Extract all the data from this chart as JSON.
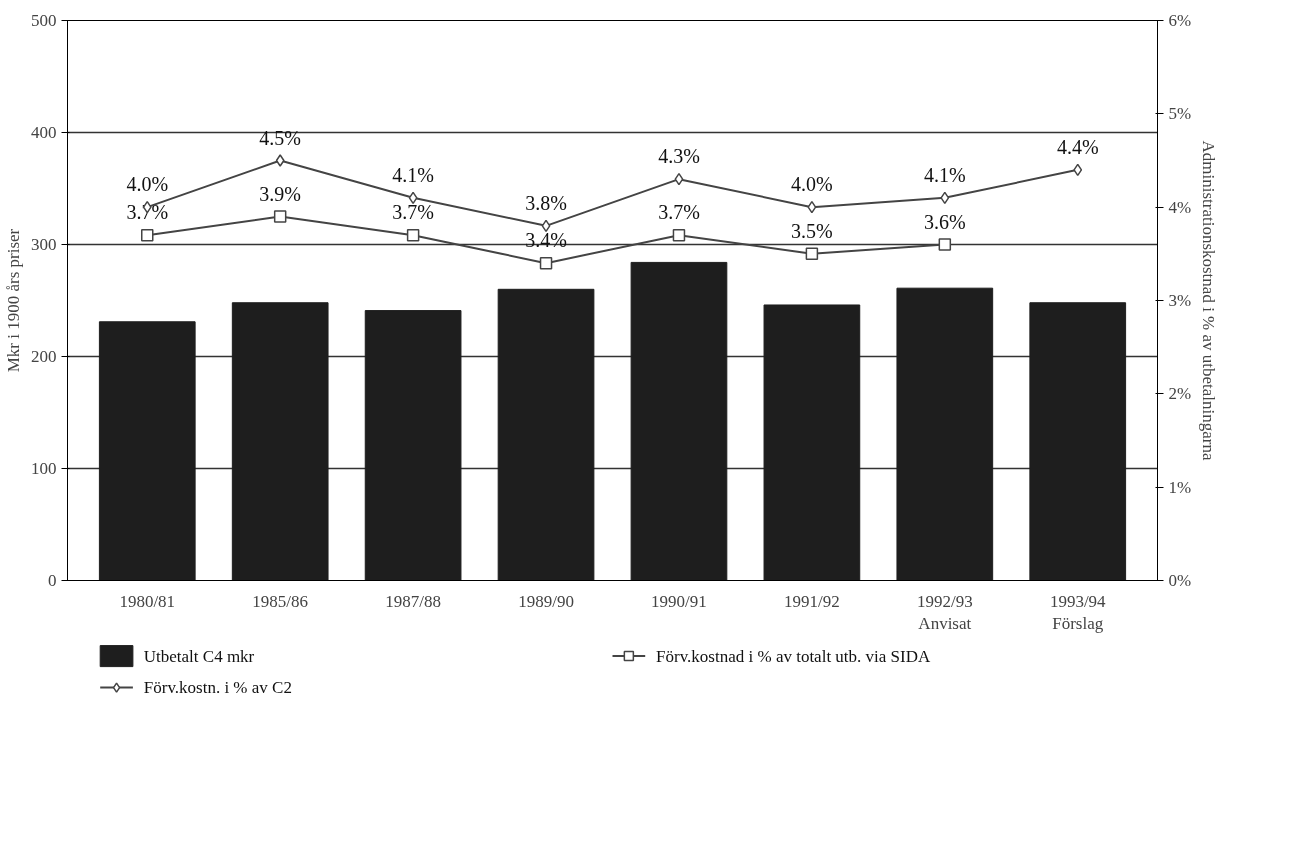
{
  "chart_data": {
    "type": "bar",
    "categories": [
      "1980/81",
      "1985/86",
      "1987/88",
      "1989/90",
      "1990/91",
      "1991/92",
      "1992/93\nAnvisat",
      "1993/94\nFörslag"
    ],
    "ylabel": "Mkr i 1900 års priser",
    "y2label": "Administrationskostnad i % av utbetalningarna",
    "ylim": [
      0,
      500
    ],
    "yticks": [
      0,
      100,
      200,
      300,
      400,
      500
    ],
    "y2lim": [
      0,
      6
    ],
    "y2ticks": [
      {
        "value": 0,
        "label": "0%"
      },
      {
        "value": 1,
        "label": "1%"
      },
      {
        "value": 2,
        "label": "2%"
      },
      {
        "value": 3,
        "label": "3%"
      },
      {
        "value": 4,
        "label": "4%"
      },
      {
        "value": 5,
        "label": "5%"
      },
      {
        "value": 6,
        "label": "6%"
      }
    ],
    "grid": "y",
    "legend": "bottom",
    "series": [
      {
        "name": "Utbetalt C4 mkr",
        "color": "#1e1e1e",
        "values": [
          231,
          248,
          241,
          260,
          284,
          246,
          261,
          248
        ]
      },
      {
        "name": "Förv.kostnad i % av totalt utb. via SIDA",
        "type": "line",
        "axis": "y2",
        "marker": "square",
        "color": "#444444",
        "values": [
          3.7,
          3.9,
          3.7,
          3.4,
          3.7,
          3.5,
          3.6,
          null
        ],
        "value_labels": [
          "3.7%",
          "3.9%",
          "3.7%",
          "3.4%",
          "3.7%",
          "3.5%",
          "3.6%",
          null
        ]
      },
      {
        "name": "Förv.kostn. i % av C2",
        "type": "line",
        "axis": "y2",
        "marker": "diamond",
        "color": "#444444",
        "values": [
          4.0,
          4.5,
          4.1,
          3.8,
          4.3,
          4.0,
          4.1,
          4.4
        ],
        "value_labels": [
          "4.0%",
          "4.5%",
          "4.1%",
          "3.8%",
          "4.3%",
          "4.0%",
          "4.1%",
          "4.4%"
        ]
      }
    ]
  }
}
